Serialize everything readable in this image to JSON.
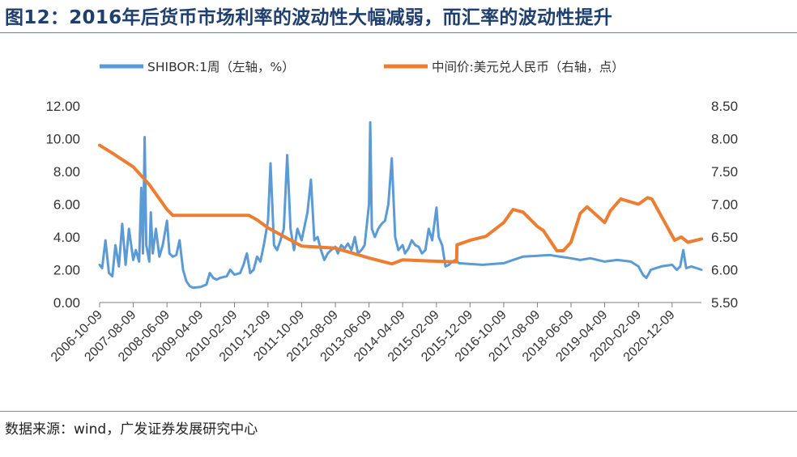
{
  "header": {
    "title": "图12：2016年后货币市场利率的波动性大幅减弱，而汇率的波动性提升"
  },
  "footer": {
    "source": "数据来源：wind，广发证券发展研究中心"
  },
  "chart_data": {
    "type": "line",
    "title": "",
    "legend_position": "top",
    "grid": false,
    "x_ticks": [
      "2006-10-09",
      "2007-08-09",
      "2008-06-09",
      "2009-04-09",
      "2010-02-09",
      "2010-12-09",
      "2011-10-09",
      "2012-08-09",
      "2013-06-09",
      "2014-04-09",
      "2015-02-09",
      "2015-12-09",
      "2016-10-09",
      "2017-08-09",
      "2018-06-09",
      "2019-04-09",
      "2020-02-09",
      "2020-12-09"
    ],
    "x_range": [
      "2006-10-09",
      "2021-08-31"
    ],
    "y_left": {
      "label": "",
      "ticks": [
        "0.00",
        "2.00",
        "4.00",
        "6.00",
        "8.00",
        "10.00",
        "12.00"
      ],
      "range": [
        0,
        12
      ]
    },
    "y_right": {
      "label": "",
      "ticks": [
        "5.50",
        "6.00",
        "6.50",
        "7.00",
        "7.50",
        "8.00",
        "8.50"
      ],
      "range": [
        5.5,
        8.5
      ]
    },
    "series": [
      {
        "name": "SHIBOR:1周（左轴，%）",
        "axis": "left",
        "color": "#5b9bd5",
        "points": [
          [
            "2006-10-09",
            2.3
          ],
          [
            "2006-11-01",
            2.1
          ],
          [
            "2006-12-01",
            3.8
          ],
          [
            "2007-01-01",
            1.8
          ],
          [
            "2007-02-01",
            1.6
          ],
          [
            "2007-03-01",
            3.5
          ],
          [
            "2007-04-01",
            2.2
          ],
          [
            "2007-05-01",
            4.8
          ],
          [
            "2007-06-01",
            2.3
          ],
          [
            "2007-07-01",
            4.5
          ],
          [
            "2007-08-09",
            2.6
          ],
          [
            "2007-09-01",
            3.2
          ],
          [
            "2007-10-01",
            2.5
          ],
          [
            "2007-10-20",
            7.0
          ],
          [
            "2007-11-05",
            3.0
          ],
          [
            "2007-11-20",
            10.1
          ],
          [
            "2007-12-05",
            3.5
          ],
          [
            "2008-01-01",
            2.5
          ],
          [
            "2008-01-15",
            5.5
          ],
          [
            "2008-02-01",
            3.0
          ],
          [
            "2008-03-01",
            4.5
          ],
          [
            "2008-04-01",
            2.8
          ],
          [
            "2008-05-01",
            3.5
          ],
          [
            "2008-06-09",
            5.0
          ],
          [
            "2008-07-01",
            3.0
          ],
          [
            "2008-08-01",
            2.8
          ],
          [
            "2008-09-01",
            2.9
          ],
          [
            "2008-10-01",
            3.8
          ],
          [
            "2008-11-01",
            2.0
          ],
          [
            "2008-12-01",
            1.3
          ],
          [
            "2009-01-01",
            1.0
          ],
          [
            "2009-02-01",
            0.9
          ],
          [
            "2009-04-09",
            0.95
          ],
          [
            "2009-06-01",
            1.1
          ],
          [
            "2009-07-01",
            1.8
          ],
          [
            "2009-08-01",
            1.5
          ],
          [
            "2009-09-01",
            1.4
          ],
          [
            "2009-10-01",
            1.5
          ],
          [
            "2009-12-01",
            1.6
          ],
          [
            "2010-01-01",
            2.0
          ],
          [
            "2010-02-09",
            1.7
          ],
          [
            "2010-04-01",
            1.8
          ],
          [
            "2010-05-01",
            2.3
          ],
          [
            "2010-06-01",
            3.0
          ],
          [
            "2010-07-01",
            1.8
          ],
          [
            "2010-08-01",
            2.0
          ],
          [
            "2010-09-01",
            2.8
          ],
          [
            "2010-10-01",
            2.5
          ],
          [
            "2010-11-01",
            3.5
          ],
          [
            "2010-12-09",
            5.0
          ],
          [
            "2011-01-01",
            8.5
          ],
          [
            "2011-02-01",
            3.5
          ],
          [
            "2011-03-01",
            3.2
          ],
          [
            "2011-04-01",
            3.8
          ],
          [
            "2011-05-01",
            4.5
          ],
          [
            "2011-06-01",
            9.0
          ],
          [
            "2011-07-01",
            4.5
          ],
          [
            "2011-08-01",
            3.2
          ],
          [
            "2011-09-01",
            4.5
          ],
          [
            "2011-10-09",
            3.8
          ],
          [
            "2011-12-01",
            5.5
          ],
          [
            "2012-01-01",
            7.5
          ],
          [
            "2012-02-01",
            3.8
          ],
          [
            "2012-03-01",
            4.0
          ],
          [
            "2012-04-01",
            3.2
          ],
          [
            "2012-05-01",
            2.6
          ],
          [
            "2012-06-01",
            3.0
          ],
          [
            "2012-07-01",
            3.2
          ],
          [
            "2012-08-09",
            3.4
          ],
          [
            "2012-09-01",
            3.0
          ],
          [
            "2012-10-01",
            3.5
          ],
          [
            "2012-11-01",
            3.3
          ],
          [
            "2012-12-01",
            3.6
          ],
          [
            "2013-01-01",
            3.2
          ],
          [
            "2013-02-01",
            4.0
          ],
          [
            "2013-03-01",
            3.0
          ],
          [
            "2013-04-01",
            3.2
          ],
          [
            "2013-05-01",
            3.5
          ],
          [
            "2013-06-09",
            6.0
          ],
          [
            "2013-06-20",
            11.0
          ],
          [
            "2013-07-05",
            4.5
          ],
          [
            "2013-08-01",
            4.0
          ],
          [
            "2013-09-01",
            4.5
          ],
          [
            "2013-10-01",
            4.8
          ],
          [
            "2013-11-01",
            5.0
          ],
          [
            "2013-12-01",
            6.0
          ],
          [
            "2014-01-01",
            8.8
          ],
          [
            "2014-02-01",
            4.0
          ],
          [
            "2014-03-01",
            3.2
          ],
          [
            "2014-04-09",
            3.5
          ],
          [
            "2014-05-01",
            3.0
          ],
          [
            "2014-06-01",
            3.3
          ],
          [
            "2014-07-01",
            3.8
          ],
          [
            "2014-08-01",
            3.5
          ],
          [
            "2014-09-01",
            3.4
          ],
          [
            "2014-10-01",
            3.0
          ],
          [
            "2014-11-01",
            3.2
          ],
          [
            "2014-12-01",
            4.5
          ],
          [
            "2015-01-01",
            3.8
          ],
          [
            "2015-02-09",
            5.8
          ],
          [
            "2015-03-01",
            4.0
          ],
          [
            "2015-04-01",
            3.5
          ],
          [
            "2015-05-01",
            2.2
          ],
          [
            "2015-06-01",
            2.3
          ],
          [
            "2015-07-01",
            2.5
          ],
          [
            "2015-08-01",
            2.6
          ],
          [
            "2015-09-01",
            2.4
          ],
          [
            "2015-12-09",
            2.35
          ],
          [
            "2016-04-01",
            2.3
          ],
          [
            "2016-10-09",
            2.4
          ],
          [
            "2017-01-01",
            2.6
          ],
          [
            "2017-04-01",
            2.8
          ],
          [
            "2017-08-09",
            2.85
          ],
          [
            "2017-12-01",
            2.9
          ],
          [
            "2018-03-01",
            2.8
          ],
          [
            "2018-06-09",
            2.7
          ],
          [
            "2018-09-01",
            2.6
          ],
          [
            "2018-12-01",
            2.7
          ],
          [
            "2019-04-09",
            2.5
          ],
          [
            "2019-08-01",
            2.6
          ],
          [
            "2019-12-01",
            2.5
          ],
          [
            "2020-02-09",
            2.2
          ],
          [
            "2020-03-20",
            1.7
          ],
          [
            "2020-04-20",
            1.5
          ],
          [
            "2020-06-01",
            2.0
          ],
          [
            "2020-09-01",
            2.2
          ],
          [
            "2020-12-09",
            2.3
          ],
          [
            "2021-01-20",
            2.0
          ],
          [
            "2021-02-20",
            2.2
          ],
          [
            "2021-03-20",
            3.2
          ],
          [
            "2021-04-15",
            2.1
          ],
          [
            "2021-06-01",
            2.2
          ],
          [
            "2021-08-31",
            2.0
          ]
        ]
      },
      {
        "name": "中间价:美元兑人民币（右轴，点）",
        "axis": "right",
        "color": "#ed7d31",
        "points": [
          [
            "2006-10-09",
            7.9
          ],
          [
            "2007-02-01",
            7.78
          ],
          [
            "2007-08-09",
            7.57
          ],
          [
            "2008-01-01",
            7.3
          ],
          [
            "2008-06-09",
            6.92
          ],
          [
            "2008-08-01",
            6.83
          ],
          [
            "2009-04-09",
            6.83
          ],
          [
            "2010-02-09",
            6.83
          ],
          [
            "2010-06-20",
            6.83
          ],
          [
            "2010-09-01",
            6.76
          ],
          [
            "2010-12-09",
            6.64
          ],
          [
            "2011-10-09",
            6.36
          ],
          [
            "2012-08-09",
            6.33
          ],
          [
            "2013-06-09",
            6.18
          ],
          [
            "2014-01-01",
            6.09
          ],
          [
            "2014-04-09",
            6.15
          ],
          [
            "2015-02-09",
            6.13
          ],
          [
            "2015-08-10",
            6.12
          ],
          [
            "2015-08-13",
            6.38
          ],
          [
            "2015-12-09",
            6.45
          ],
          [
            "2016-05-01",
            6.51
          ],
          [
            "2016-10-09",
            6.72
          ],
          [
            "2017-01-01",
            6.92
          ],
          [
            "2017-04-01",
            6.88
          ],
          [
            "2017-08-09",
            6.66
          ],
          [
            "2017-10-01",
            6.6
          ],
          [
            "2018-02-01",
            6.29
          ],
          [
            "2018-04-01",
            6.29
          ],
          [
            "2018-06-09",
            6.42
          ],
          [
            "2018-09-01",
            6.86
          ],
          [
            "2018-11-01",
            6.96
          ],
          [
            "2019-01-01",
            6.87
          ],
          [
            "2019-04-09",
            6.72
          ],
          [
            "2019-06-01",
            6.9
          ],
          [
            "2019-09-01",
            7.08
          ],
          [
            "2020-02-09",
            7.0
          ],
          [
            "2020-05-01",
            7.1
          ],
          [
            "2020-06-09",
            7.08
          ],
          [
            "2020-12-09",
            6.52
          ],
          [
            "2021-01-01",
            6.45
          ],
          [
            "2021-03-01",
            6.5
          ],
          [
            "2021-05-01",
            6.42
          ],
          [
            "2021-08-31",
            6.47
          ]
        ]
      }
    ]
  }
}
